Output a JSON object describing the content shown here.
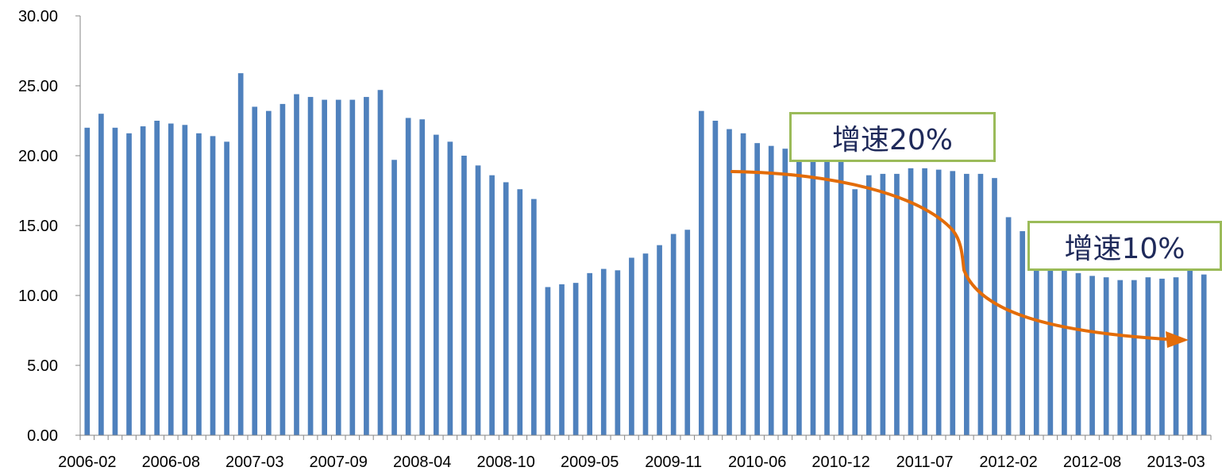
{
  "chart_data": {
    "type": "bar",
    "title": "",
    "xlabel": "",
    "ylabel": "",
    "ylim": [
      0,
      30
    ],
    "y_ticks": [
      "0.00",
      "5.00",
      "10.00",
      "15.00",
      "20.00",
      "25.00",
      "30.00"
    ],
    "x_tick_labels": [
      "2006-02",
      "2006-08",
      "2007-03",
      "2007-09",
      "2008-04",
      "2008-10",
      "2009-05",
      "2009-11",
      "2010-06",
      "2010-12",
      "2011-07",
      "2012-02",
      "2012-08",
      "2013-03"
    ],
    "bar_color": "#4f81bd",
    "grid": false,
    "values": [
      22.0,
      23.0,
      22.0,
      21.6,
      22.1,
      22.5,
      22.3,
      22.2,
      21.6,
      21.4,
      21.0,
      25.9,
      23.5,
      23.2,
      23.7,
      24.4,
      24.2,
      24.0,
      24.0,
      24.0,
      24.2,
      24.7,
      19.7,
      22.7,
      22.6,
      21.5,
      21.0,
      20.0,
      19.3,
      18.6,
      18.1,
      17.6,
      16.9,
      10.6,
      10.8,
      10.9,
      11.6,
      11.9,
      11.8,
      12.7,
      13.0,
      13.6,
      14.4,
      14.7,
      23.2,
      22.5,
      21.9,
      21.6,
      20.9,
      20.7,
      20.5,
      20.3,
      20.1,
      20.1,
      20.3,
      17.6,
      18.6,
      18.7,
      18.7,
      19.1,
      19.1,
      19.0,
      18.9,
      18.7,
      18.7,
      18.4,
      15.6,
      14.6,
      12.5,
      12.0,
      11.8,
      11.6,
      11.4,
      11.3,
      11.1,
      11.1,
      11.3,
      11.2,
      11.3,
      11.9,
      11.5
    ],
    "annotations": [
      {
        "text": "增速20%",
        "border_color": "#9bbb59"
      },
      {
        "text": "增速10%",
        "border_color": "#9bbb59"
      }
    ],
    "trend_arrow_color": "#e36c09"
  }
}
